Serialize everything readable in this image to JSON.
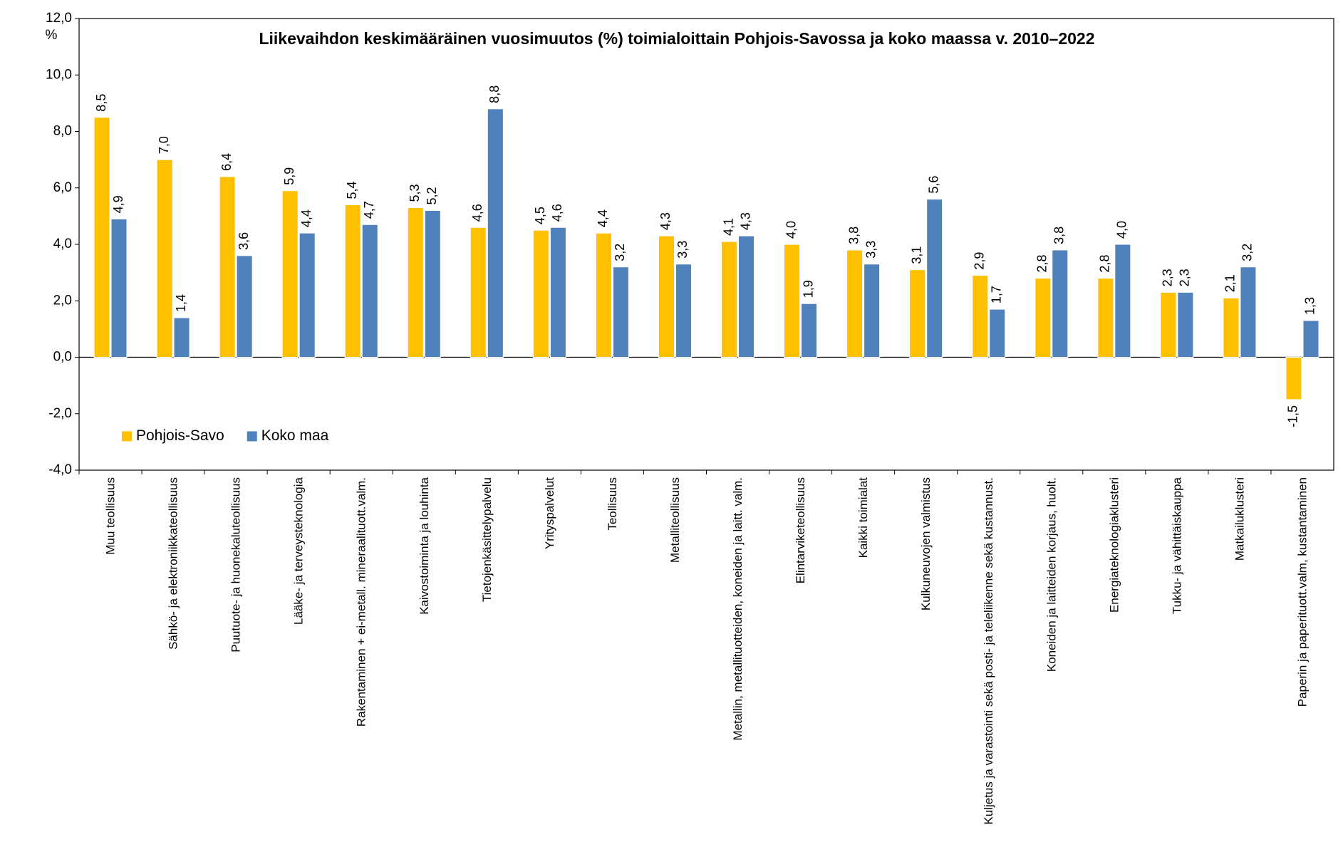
{
  "chart_data": {
    "type": "bar",
    "title": "Liikevaihdon keskimääräinen vuosimuutos (%) toimialoittain Pohjois-Savossa ja koko maassa v. 2010–2022",
    "y_unit": "%",
    "categories": [
      "Muu teollisuus",
      "Sähkö- ja elektroniikkateollisuus",
      "Puutuote- ja huonekaluteollisuus",
      "Lääke- ja terveysteknologia",
      "Rakentaminen + ei-metall. mineraalituott.valm.",
      "Kaivostoiminta ja louhinta",
      "Tietojenkäsittelypalvelu",
      "Yrityspalvelut",
      "Teollisuus",
      "Metalliteollisuus",
      "Metallin, metallituotteiden, koneiden ja laitt. valm.",
      "Elintarviketeollisuus",
      "Kaikki toimialat",
      "Kulkuneuvojen valmistus",
      "Kuljetus ja varastointi sekä posti- ja teleliikenne sekä kustannust.",
      "Koneiden ja laitteiden korjaus, huolt.",
      "Energiateknologiaklusteri",
      "Tukku- ja vähittäiskauppa",
      "Matkailuklusteri",
      "Paperin ja paperituott.valm, kustantaminen"
    ],
    "series": [
      {
        "name": "Pohjois-Savo",
        "color": "#ffc000",
        "values": [
          8.5,
          7.0,
          6.4,
          5.9,
          5.4,
          5.3,
          4.6,
          4.5,
          4.4,
          4.3,
          4.1,
          4.0,
          3.8,
          3.1,
          2.9,
          2.8,
          2.8,
          2.3,
          2.1,
          -1.5
        ],
        "value_labels": [
          "8,5",
          "7,0",
          "6,4",
          "5,9",
          "5,4",
          "5,3",
          "4,6",
          "4,5",
          "4,4",
          "4,3",
          "4,1",
          "4,0",
          "3,8",
          "3,1",
          "2,9",
          "2,8",
          "2,8",
          "2,3",
          "2,1",
          "-1,5"
        ]
      },
      {
        "name": "Koko maa",
        "color": "#4f81bd",
        "values": [
          4.9,
          1.4,
          3.6,
          4.4,
          4.7,
          5.2,
          8.8,
          4.6,
          3.2,
          3.3,
          4.3,
          1.9,
          3.3,
          5.6,
          1.7,
          3.8,
          4.0,
          2.3,
          3.2,
          1.3
        ],
        "value_labels": [
          "4,9",
          "1,4",
          "3,6",
          "4,4",
          "4,7",
          "5,2",
          "8,8",
          "4,6",
          "3,2",
          "3,3",
          "4,3",
          "1,9",
          "3,3",
          "5,6",
          "1,7",
          "3,8",
          "4,0",
          "2,3",
          "3,2",
          "1,3"
        ]
      }
    ],
    "ylim": [
      -4,
      12
    ],
    "yticks": [
      {
        "value": -4,
        "label": "-4,0"
      },
      {
        "value": -2,
        "label": "-2,0"
      },
      {
        "value": 0,
        "label": "0,0"
      },
      {
        "value": 2,
        "label": "2,0"
      },
      {
        "value": 4,
        "label": "4,0"
      },
      {
        "value": 6,
        "label": "6,0"
      },
      {
        "value": 8,
        "label": "8,0"
      },
      {
        "value": 10,
        "label": "10,0"
      },
      {
        "value": 12,
        "label": "12,0"
      }
    ],
    "grid": false,
    "legend": "lower left"
  }
}
